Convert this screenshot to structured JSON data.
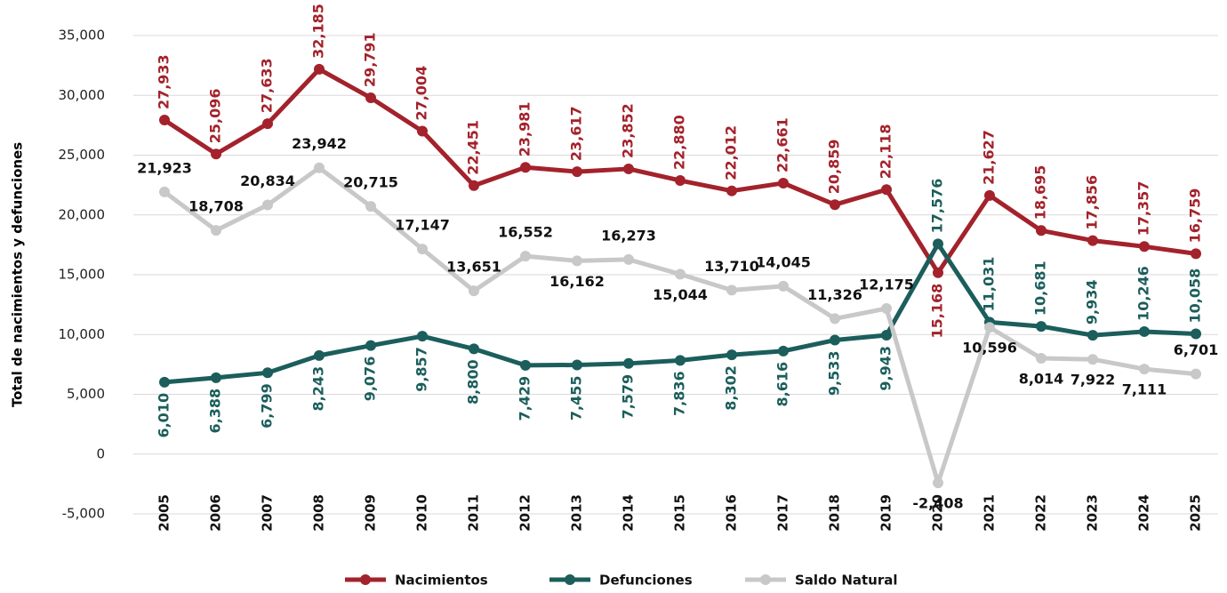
{
  "chart_data": {
    "type": "line",
    "y_label": "Total de nacimientos y defunciones",
    "categories": [
      "2005",
      "2006",
      "2007",
      "2008",
      "2009",
      "2010",
      "2011",
      "2012",
      "2013",
      "2014",
      "2015",
      "2016",
      "2017",
      "2018",
      "2019",
      "2020",
      "2021",
      "2022",
      "2023",
      "2024",
      "2025"
    ],
    "series": [
      {
        "name": "Nacimientos",
        "color": "#a3222b",
        "values": [
          27933,
          25096,
          27633,
          32185,
          29791,
          27004,
          22451,
          23981,
          23617,
          23852,
          22880,
          22012,
          22661,
          20859,
          22118,
          15168,
          21627,
          18695,
          17856,
          17357,
          16759
        ],
        "value_labels": [
          "27,933",
          "25,096",
          "27,633",
          "32,185",
          "29,791",
          "27,004",
          "22,451",
          "23,981",
          "23,617",
          "23,852",
          "22,880",
          "22,012",
          "22,661",
          "20,859",
          "22,118",
          "15,168",
          "21,627",
          "18,695",
          "17,856",
          "17,357",
          "16,759"
        ]
      },
      {
        "name": "Defunciones",
        "color": "#1b5e5b",
        "values": [
          6010,
          6388,
          6799,
          8243,
          9076,
          9857,
          8800,
          7429,
          7455,
          7579,
          7836,
          8302,
          8616,
          9533,
          9943,
          17576,
          11031,
          10681,
          9934,
          10246,
          10058
        ],
        "value_labels": [
          "6,010",
          "6,388",
          "6,799",
          "8,243",
          "9,076",
          "9,857",
          "8,800",
          "7,429",
          "7,455",
          "7,579",
          "7,836",
          "8,302",
          "8,616",
          "9,533",
          "9,943",
          "17,576",
          "11,031",
          "10,681",
          "9,934",
          "10,246",
          "10,058"
        ]
      },
      {
        "name": "Saldo Natural",
        "color": "#c8c8c8",
        "values": [
          21923,
          18708,
          20834,
          23942,
          20715,
          17147,
          13651,
          16552,
          16162,
          16273,
          15044,
          13710,
          14045,
          11326,
          12175,
          -2408,
          10596,
          8014,
          7922,
          7111,
          6701
        ],
        "value_labels": [
          "21,923",
          "18,708",
          "20,834",
          "23,942",
          "20,715",
          "17,147",
          "13,651",
          "16,552",
          "16,162",
          "16,273",
          "15,044",
          "13,710",
          "14,045",
          "11,326",
          "12,175",
          "-2,408",
          "10,596",
          "8,014",
          "7,922",
          "7,111",
          "6,701"
        ]
      }
    ],
    "ylim": [
      -5000,
      35000
    ],
    "yticks": [
      {
        "value": -5000,
        "label": "-5,000"
      },
      0,
      {
        "value": 5000,
        "label": "5,000"
      },
      {
        "value": 10000,
        "label": "10,000"
      },
      {
        "value": 15000,
        "label": "15,000"
      },
      {
        "value": 20000,
        "label": "20,000"
      },
      {
        "value": 25000,
        "label": "25,000"
      },
      {
        "value": 30000,
        "label": "30,000"
      },
      {
        "value": 35000,
        "label": "35,000"
      }
    ],
    "grid": true,
    "legend": "bottom"
  }
}
